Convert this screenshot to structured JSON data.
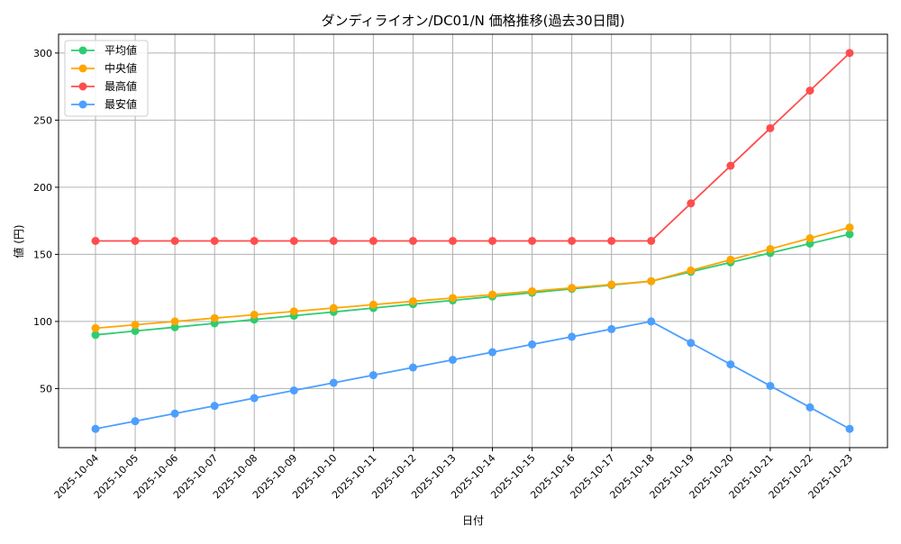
{
  "chart_data": {
    "type": "line",
    "title": "ダンディライオン/DC01/N 価格推移(過去30日間)",
    "xlabel": "日付",
    "ylabel": "値 (円)",
    "ylim": [
      6,
      314
    ],
    "yticks": [
      50,
      100,
      150,
      200,
      250,
      300
    ],
    "grid": true,
    "legend_position": "top-left",
    "x": [
      "2025-10-04",
      "2025-10-05",
      "2025-10-06",
      "2025-10-07",
      "2025-10-08",
      "2025-10-09",
      "2025-10-10",
      "2025-10-11",
      "2025-10-12",
      "2025-10-13",
      "2025-10-14",
      "2025-10-15",
      "2025-10-16",
      "2025-10-17",
      "2025-10-18",
      "2025-10-19",
      "2025-10-20",
      "2025-10-21",
      "2025-10-22",
      "2025-10-23"
    ],
    "series": [
      {
        "name": "平均値",
        "color": "#2ecc71",
        "values": [
          90,
          92.9,
          95.7,
          98.6,
          101.4,
          104.3,
          107.1,
          110,
          112.9,
          115.7,
          118.6,
          121.4,
          124.3,
          127.1,
          130,
          137,
          144,
          151,
          158,
          165
        ]
      },
      {
        "name": "中央値",
        "color": "#ffa500",
        "values": [
          95,
          97.5,
          100,
          102.5,
          105,
          107.5,
          110,
          112.5,
          115,
          117.5,
          120,
          122.5,
          125,
          127.5,
          130,
          138,
          146,
          154,
          162,
          170
        ]
      },
      {
        "name": "最高値",
        "color": "#ff4d4d",
        "values": [
          160,
          160,
          160,
          160,
          160,
          160,
          160,
          160,
          160,
          160,
          160,
          160,
          160,
          160,
          160,
          188,
          216,
          244,
          272,
          300
        ]
      },
      {
        "name": "最安値",
        "color": "#4d9fff",
        "values": [
          20,
          25.7,
          31.4,
          37.1,
          42.9,
          48.6,
          54.3,
          60,
          65.7,
          71.4,
          77.1,
          82.9,
          88.6,
          94.3,
          100,
          84,
          68,
          52,
          36,
          20
        ]
      }
    ]
  }
}
